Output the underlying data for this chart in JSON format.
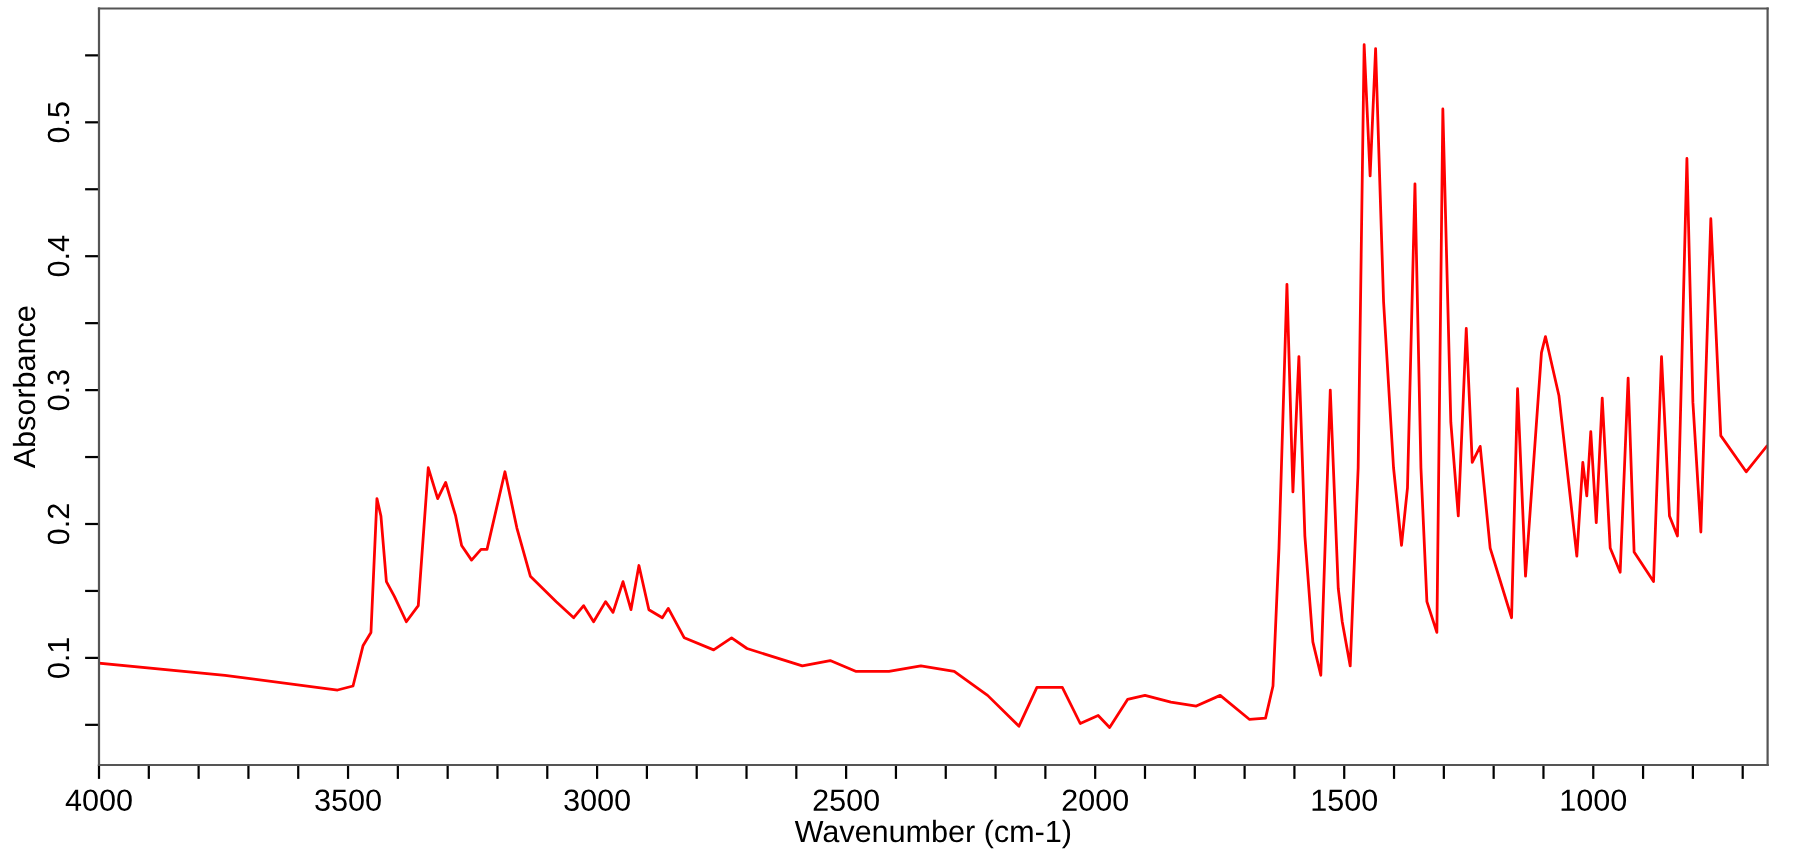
{
  "chart_data": {
    "type": "line",
    "xlabel": "Wavenumber (cm-1)",
    "ylabel": "Absorbance",
    "xlim": [
      4000,
      650
    ],
    "ylim": [
      0.02,
      0.585
    ],
    "xticks": [
      4000,
      {
        "value": 3900,
        "label": null
      },
      {
        "value": 3800,
        "label": null
      },
      {
        "value": 3700,
        "label": null
      },
      {
        "value": 3600,
        "label": null
      },
      3500,
      {
        "value": 3400,
        "label": null
      },
      {
        "value": 3300,
        "label": null
      },
      {
        "value": 3200,
        "label": null
      },
      {
        "value": 3100,
        "label": null
      },
      3000,
      {
        "value": 2900,
        "label": null
      },
      {
        "value": 2800,
        "label": null
      },
      {
        "value": 2700,
        "label": null
      },
      {
        "value": 2600,
        "label": null
      },
      2500,
      {
        "value": 2400,
        "label": null
      },
      {
        "value": 2300,
        "label": null
      },
      {
        "value": 2200,
        "label": null
      },
      {
        "value": 2100,
        "label": null
      },
      2000,
      {
        "value": 1900,
        "label": null
      },
      {
        "value": 1800,
        "label": null
      },
      {
        "value": 1700,
        "label": null
      },
      {
        "value": 1600,
        "label": null
      },
      1500,
      {
        "value": 1400,
        "label": null
      },
      {
        "value": 1300,
        "label": null
      },
      {
        "value": 1200,
        "label": null
      },
      {
        "value": 1100,
        "label": null
      },
      1000,
      {
        "value": 900,
        "label": null
      },
      {
        "value": 800,
        "label": null
      },
      {
        "value": 700,
        "label": null
      }
    ],
    "yticks": [
      {
        "value": 0.05,
        "label": null
      },
      0.1,
      {
        "value": 0.15,
        "label": null
      },
      0.2,
      {
        "value": 0.25,
        "label": null
      },
      0.3,
      {
        "value": 0.35,
        "label": null
      },
      0.4,
      {
        "value": 0.45,
        "label": null
      },
      0.5,
      {
        "value": 0.55,
        "label": null
      }
    ],
    "grid": false,
    "marker": "none",
    "line_style": "solid",
    "series": [
      {
        "color": "#ff0000",
        "x": [
          4000,
          3747,
          3521,
          3490,
          3470,
          3454,
          3442,
          3434,
          3423,
          3407,
          3383,
          3359,
          3339,
          3320,
          3304,
          3284,
          3272,
          3252,
          3233,
          3221,
          3185,
          3161,
          3134,
          3082,
          3047,
          3027,
          3007,
          2983,
          2968,
          2948,
          2932,
          2916,
          2896,
          2869,
          2857,
          2825,
          2766,
          2730,
          2699,
          2588,
          2532,
          2481,
          2414,
          2350,
          2283,
          2216,
          2153,
          2117,
          2066,
          2030,
          1994,
          1971,
          1935,
          1900,
          1848,
          1797,
          1749,
          1690,
          1658,
          1643,
          1631,
          1615,
          1603,
          1591,
          1579,
          1563,
          1547,
          1528,
          1512,
          1504,
          1488,
          1472,
          1460,
          1448,
          1437,
          1421,
          1401,
          1385,
          1373,
          1358,
          1346,
          1334,
          1314,
          1302,
          1286,
          1271,
          1255,
          1243,
          1227,
          1207,
          1164,
          1152,
          1136,
          1104,
          1096,
          1069,
          1033,
          1021,
          1013,
          1005,
          994,
          982,
          966,
          946,
          930,
          918,
          879,
          863,
          847,
          831,
          812,
          800,
          784,
          764,
          744,
          693,
          652
        ],
        "values": [
          0.096,
          0.087,
          0.076,
          0.079,
          0.109,
          0.119,
          0.219,
          0.206,
          0.157,
          0.146,
          0.127,
          0.139,
          0.242,
          0.219,
          0.231,
          0.206,
          0.184,
          0.173,
          0.181,
          0.181,
          0.239,
          0.197,
          0.161,
          0.142,
          0.13,
          0.139,
          0.127,
          0.142,
          0.134,
          0.157,
          0.136,
          0.169,
          0.136,
          0.13,
          0.137,
          0.115,
          0.106,
          0.115,
          0.107,
          0.094,
          0.098,
          0.09,
          0.09,
          0.094,
          0.09,
          0.072,
          0.049,
          0.078,
          0.078,
          0.051,
          0.057,
          0.048,
          0.069,
          0.072,
          0.067,
          0.064,
          0.072,
          0.054,
          0.055,
          0.079,
          0.182,
          0.379,
          0.224,
          0.325,
          0.191,
          0.112,
          0.087,
          0.3,
          0.152,
          0.127,
          0.094,
          0.242,
          0.558,
          0.46,
          0.555,
          0.366,
          0.242,
          0.184,
          0.227,
          0.454,
          0.242,
          0.142,
          0.119,
          0.51,
          0.276,
          0.206,
          0.346,
          0.246,
          0.258,
          0.182,
          0.13,
          0.301,
          0.161,
          0.328,
          0.34,
          0.296,
          0.176,
          0.246,
          0.221,
          0.269,
          0.201,
          0.294,
          0.182,
          0.164,
          0.309,
          0.179,
          0.157,
          0.325,
          0.206,
          0.191,
          0.473,
          0.291,
          0.194,
          0.428,
          0.266,
          0.239,
          0.258
        ]
      }
    ]
  }
}
